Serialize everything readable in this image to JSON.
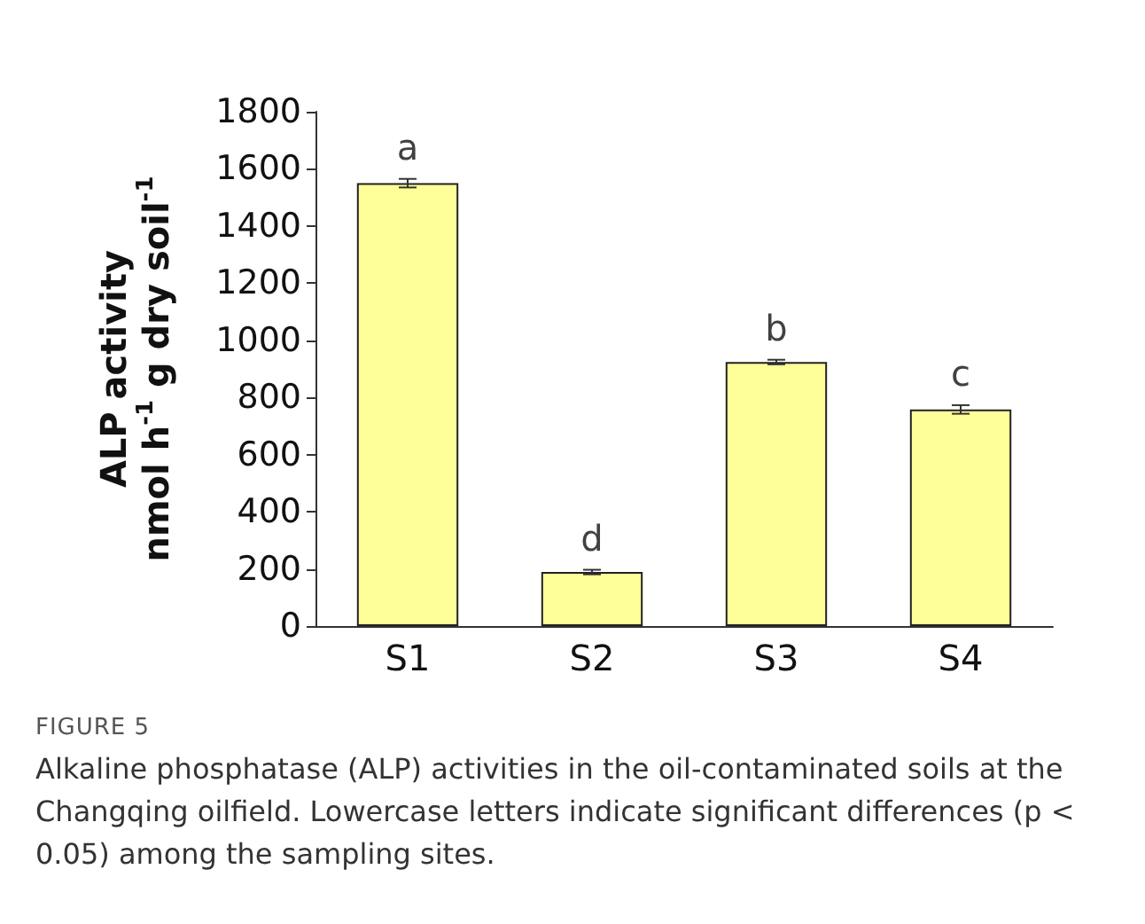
{
  "chart_data": {
    "type": "bar",
    "ylabel": "ALP activity\nnmol h$^{-1}$ g dry soil$^{-1}$",
    "categories": [
      "S1",
      "S2",
      "S3",
      "S4"
    ],
    "values": [
      1550,
      189,
      924,
      758
    ],
    "errors": [
      15,
      8,
      8,
      15
    ],
    "color": "#ffff99",
    "ylim": [
      0,
      1800
    ],
    "yticks": [
      0,
      200,
      400,
      600,
      800,
      1000,
      1200,
      1400,
      1600,
      1800
    ],
    "grid": false,
    "annotations": [
      {
        "text": "a",
        "x": "S1",
        "y": 1550
      },
      {
        "text": "d",
        "x": "S2",
        "y": 189
      },
      {
        "text": "b",
        "x": "S3",
        "y": 924
      },
      {
        "text": "c",
        "x": "S4",
        "y": 758
      },
      "FIGURE 5",
      "Alkaline phosphatase (ALP) activities in the oil-contaminated soils at the Changqing oilfield. Lowercase letters indicate significant differences (p < 0.05) among the sampling sites."
    ]
  }
}
